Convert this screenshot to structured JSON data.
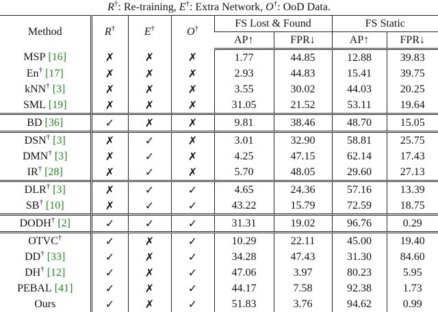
{
  "caption": [
    {
      "sym": "R",
      "sup": "†",
      "text": ": Re-training, "
    },
    {
      "sym": "E",
      "sup": "†",
      "text": ": Extra Network, "
    },
    {
      "sym": "O",
      "sup": "†",
      "text": ": OoD Data."
    }
  ],
  "header": {
    "method": "Method",
    "flags": [
      {
        "sym": "R",
        "sup": "†"
      },
      {
        "sym": "E",
        "sup": "†"
      },
      {
        "sym": "O",
        "sup": "†"
      }
    ],
    "groups": [
      "FS Lost & Found",
      "FS Static"
    ],
    "metrics": [
      "AP↑",
      "FPR↓",
      "AP↑",
      "FPR↓"
    ]
  },
  "groups": [
    [
      {
        "name": "MSP",
        "cite": "[16]",
        "cells": [
          "✗",
          "✗",
          "✗",
          "1.77",
          "44.85",
          "12.88",
          "39.83"
        ]
      },
      {
        "name": "En",
        "sup": "†",
        "cite": "[17]",
        "cells": [
          "✗",
          "✗",
          "✗",
          "2.93",
          "44.83",
          "15.41",
          "39.75"
        ]
      },
      {
        "name": "kNN",
        "sup": "†",
        "cite": "[3]",
        "cells": [
          "✗",
          "✗",
          "✗",
          "3.55",
          "30.02",
          "44.03",
          "20.25"
        ]
      },
      {
        "name": "SML",
        "cite": "[19]",
        "cells": [
          "✗",
          "✗",
          "✗",
          "31.05",
          "21.52",
          "53.11",
          "19.64"
        ]
      }
    ],
    [
      {
        "name": "BD",
        "cite": "[36]",
        "cells": [
          "✓",
          "✗",
          "✗",
          "9.81",
          "38.46",
          "48.70",
          "15.05"
        ]
      }
    ],
    [
      {
        "name": "DSN",
        "sup": "†",
        "cite": "[3]",
        "cells": [
          "✗",
          "✓",
          "✗",
          "3.01",
          "32.90",
          "58.81",
          "25.75"
        ]
      },
      {
        "name": "DMN",
        "sup": "†",
        "cite": "[3]",
        "cells": [
          "✗",
          "✓",
          "✗",
          "4.25",
          "47.15",
          "62.14",
          "17.43"
        ]
      },
      {
        "name": "IR",
        "sup": "†",
        "cite": "[28]",
        "cells": [
          "✗",
          "✓",
          "✗",
          "5.70",
          "48.05",
          "29.60",
          "27.13"
        ]
      }
    ],
    [
      {
        "name": "DLR",
        "sup": "†",
        "cite": "[3]",
        "cells": [
          "✗",
          "✓",
          "✓",
          "4.65",
          "24.36",
          "57.16",
          "13.39"
        ]
      },
      {
        "name": "SB",
        "sup": "†",
        "cite": "[10]",
        "cells": [
          "✗",
          "✓",
          "✓",
          "43.22",
          "15.79",
          "72.59",
          "18.75"
        ]
      }
    ],
    [
      {
        "name": "DODH",
        "sup": "†",
        "cite": "[2]",
        "cells": [
          "✓",
          "✓",
          "✓",
          "31.31",
          "19.02",
          "96.76",
          "0.29"
        ]
      }
    ],
    [
      {
        "name": "OTVC",
        "sup": "†",
        "cells": [
          "✓",
          "✗",
          "✓",
          "10.29",
          "22.11",
          "45.00",
          "19.40"
        ]
      },
      {
        "name": "DD",
        "sup": "†",
        "cite": "[33]",
        "cells": [
          "✓",
          "✗",
          "✓",
          "34.28",
          "47.43",
          "31.30",
          "84.60"
        ]
      },
      {
        "name": "DH",
        "sup": "†",
        "cite": "[12]",
        "cells": [
          "✓",
          "✗",
          "✓",
          "47.06",
          "3.97",
          "80.23",
          "5.95"
        ]
      },
      {
        "name": "PEBAL",
        "cite": "[41]",
        "cells": [
          "✓",
          "✗",
          "✓",
          "44.17",
          "7.58",
          "92.38",
          "1.73"
        ]
      },
      {
        "name": "Ours",
        "bold": true,
        "cells": [
          "✓",
          "✗",
          "✓",
          "51.83",
          "3.76",
          "94.62",
          "0.99"
        ]
      }
    ]
  ]
}
